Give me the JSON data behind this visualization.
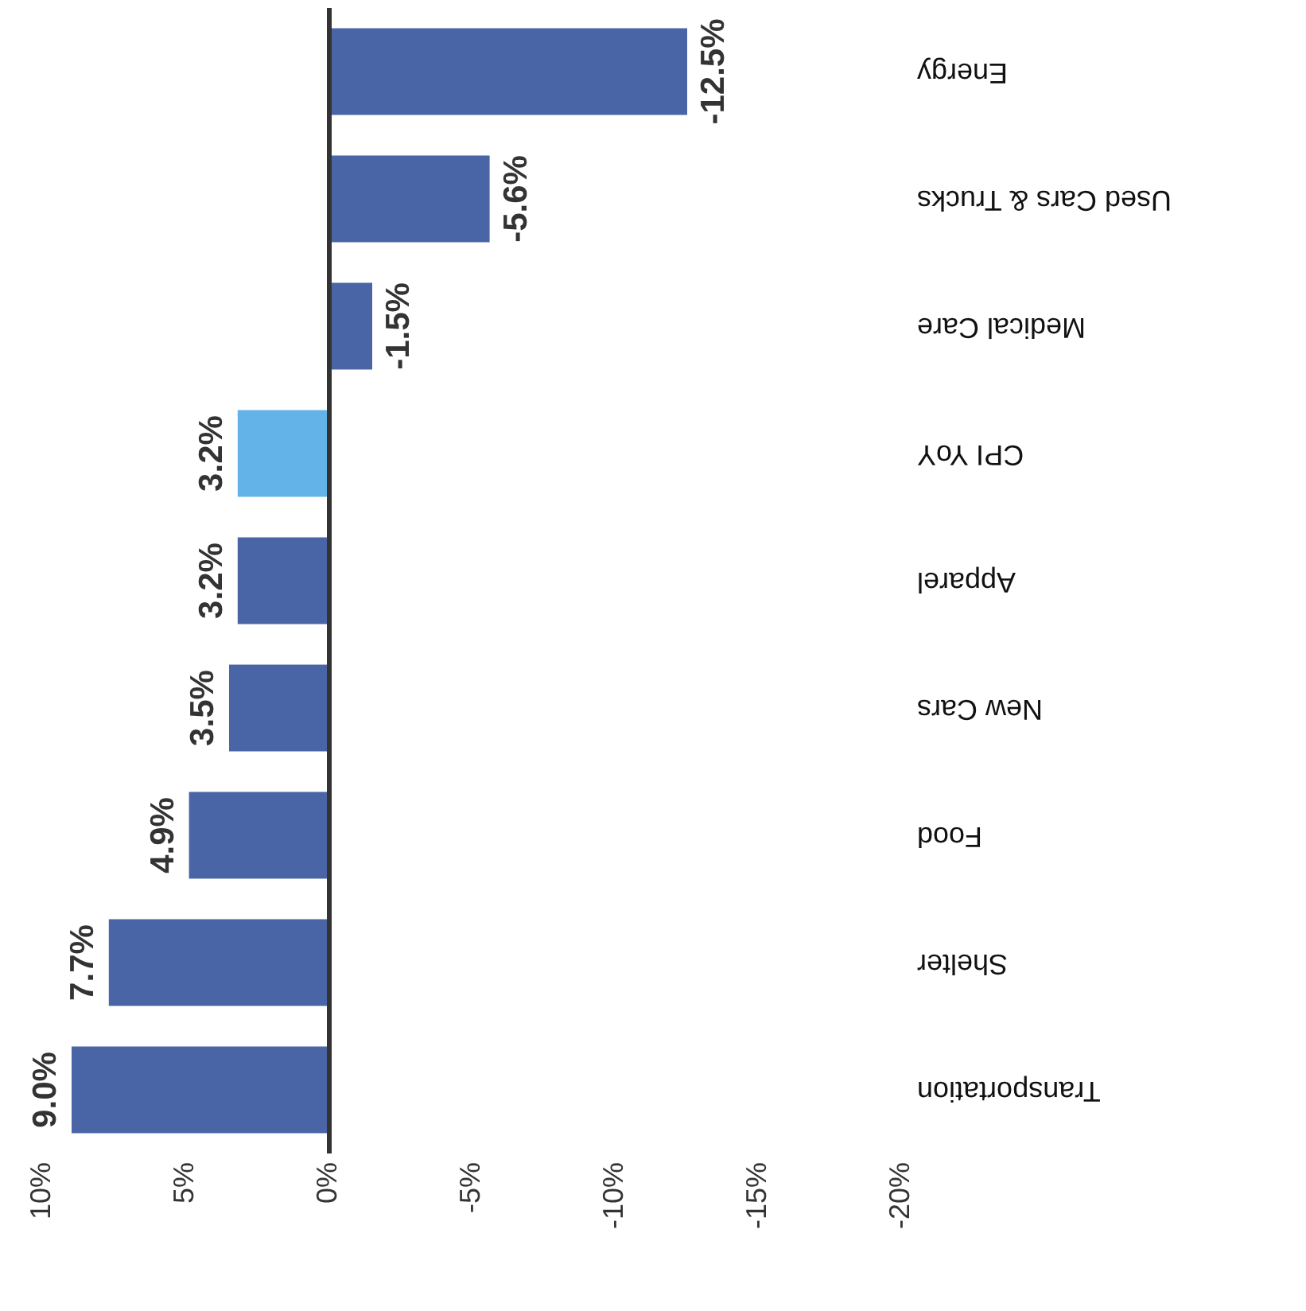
{
  "chart_data": {
    "type": "bar",
    "orientation": "horizontal",
    "categories": [
      "Energy",
      "Used Cars & Trucks",
      "Medical Care",
      "CPI YoY",
      "Apparel",
      "New Cars",
      "Food",
      "Shelter",
      "Transportation"
    ],
    "values": [
      -12.5,
      -5.6,
      -1.5,
      3.2,
      3.2,
      3.5,
      4.9,
      7.7,
      9.0
    ],
    "colors": [
      "#4a65a6",
      "#4a65a6",
      "#4a65a6",
      "#63b3e8",
      "#4a65a6",
      "#4a65a6",
      "#4a65a6",
      "#4a65a6",
      "#4a65a6"
    ],
    "value_labels": [
      "-12.5%",
      "-5.6%",
      "-1.5%",
      "3.2%",
      "3.2%",
      "3.5%",
      "4.9%",
      "7.7%",
      "9.0%"
    ],
    "xlim": [
      10,
      -20
    ],
    "xticks": [
      {
        "value": 10,
        "label": "10%"
      },
      {
        "value": 5,
        "label": "5%"
      },
      {
        "value": 0,
        "label": "0%"
      },
      {
        "value": -5,
        "label": "-5%"
      },
      {
        "value": -10,
        "label": "-10%"
      },
      {
        "value": -15,
        "label": "-15%"
      },
      {
        "value": -20,
        "label": "-20%"
      }
    ],
    "ylabel": null
  }
}
